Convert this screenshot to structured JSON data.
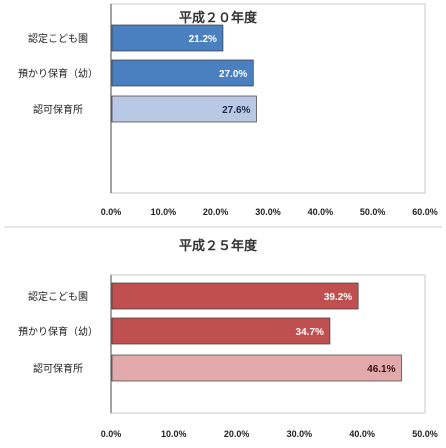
{
  "chart_data": [
    {
      "type": "bar",
      "orientation": "horizontal",
      "title": "平成２０年度",
      "categories": [
        "認定こども園",
        "預かり保育（幼）",
        "認可保育所"
      ],
      "values": [
        21.2,
        27.0,
        27.6
      ],
      "value_labels": [
        "21.2%",
        "27.0%",
        "27.6%"
      ],
      "xlim": [
        0,
        60
      ],
      "x_ticks": [
        "0.0%",
        "10.0%",
        "20.0%",
        "30.0%",
        "40.0%",
        "50.0%",
        "60.0%"
      ],
      "bar_colors": [
        "#4a7fc0",
        "#4a7fc0",
        "#b9c8e4"
      ],
      "label_colors": [
        "#ffffff",
        "#ffffff",
        "#1b2a4a"
      ],
      "grid": false
    },
    {
      "type": "bar",
      "orientation": "horizontal",
      "title": "平成２５年度",
      "categories": [
        "認定こども園",
        "預かり保育（幼）",
        "認可保育所"
      ],
      "values": [
        39.2,
        34.7,
        46.1
      ],
      "value_labels": [
        "39.2%",
        "34.7%",
        "46.1%"
      ],
      "xlim": [
        0,
        50
      ],
      "x_ticks": [
        "0.0%",
        "10.0%",
        "20.0%",
        "30.0%",
        "40.0%",
        "50.0%"
      ],
      "bar_colors": [
        "#c05050",
        "#c05050",
        "#e2aaaa"
      ],
      "label_colors": [
        "#ffffff",
        "#ffffff",
        "#3a1010"
      ],
      "grid": false
    }
  ]
}
